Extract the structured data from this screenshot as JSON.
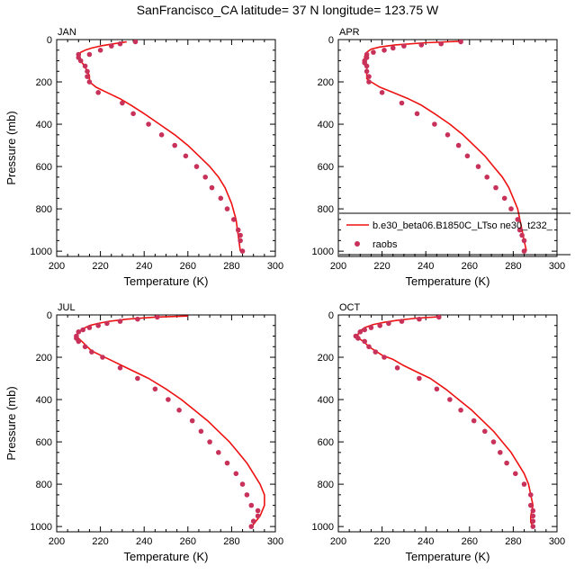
{
  "figure": {
    "title": "SanFrancisco_CA  latitude= 37 N longitude= 123.75 W"
  },
  "legend": {
    "model_label": "b.e30_beta06.B1850C_LTso ne30_t232_",
    "obs_label": "raobs",
    "model_color": "#ee1111",
    "obs_color": "#c8325a",
    "placement": "over APR panel, lower right"
  },
  "chart_data": [
    {
      "type": "line",
      "panel": "JAN",
      "title": "JAN",
      "xlabel": "Temperature (K)",
      "ylabel": "Pressure (mb)",
      "xlim": [
        200,
        300
      ],
      "ylim": [
        1025,
        0
      ],
      "x_ticks": [
        200,
        220,
        240,
        260,
        280,
        300
      ],
      "y_ticks": [
        0,
        200,
        400,
        600,
        800,
        1000
      ],
      "grid": false,
      "series": [
        {
          "name": "b.e30_beta06.B1850C_LTso ne30_t232_",
          "kind": "line",
          "points": [
            [
              232,
              10
            ],
            [
              226,
              20
            ],
            [
              220,
              30
            ],
            [
              216,
              40
            ],
            [
              213,
              50
            ],
            [
              211,
              60
            ],
            [
              210,
              75
            ],
            [
              210,
              90
            ],
            [
              211,
              100
            ],
            [
              212,
              115
            ],
            [
              213,
              130
            ],
            [
              214,
              150
            ],
            [
              215,
              170
            ],
            [
              215,
              200
            ],
            [
              218,
              225
            ],
            [
              223,
              250
            ],
            [
              229,
              280
            ],
            [
              234,
              310
            ],
            [
              240,
              350
            ],
            [
              247,
              400
            ],
            [
              254,
              450
            ],
            [
              260,
              500
            ],
            [
              265,
              550
            ],
            [
              270,
              600
            ],
            [
              274,
              650
            ],
            [
              277,
              700
            ],
            [
              280,
              775
            ],
            [
              282,
              850
            ],
            [
              283,
              925
            ],
            [
              284,
              1000
            ]
          ]
        },
        {
          "name": "raobs",
          "kind": "scatter",
          "points": [
            [
              236,
              10
            ],
            [
              229,
              20
            ],
            [
              225,
              30
            ],
            [
              220,
              50
            ],
            [
              215,
              70
            ],
            [
              210,
              70
            ],
            [
              210,
              85
            ],
            [
              211,
              100
            ],
            [
              213,
              125
            ],
            [
              214,
              150
            ],
            [
              214,
              175
            ],
            [
              215,
              200
            ],
            [
              219,
              250
            ],
            [
              230,
              300
            ],
            [
              235,
              350
            ],
            [
              242,
              400
            ],
            [
              248,
              450
            ],
            [
              254,
              500
            ],
            [
              259,
              550
            ],
            [
              264,
              600
            ],
            [
              268,
              650
            ],
            [
              271,
              700
            ],
            [
              275,
              750
            ],
            [
              278,
              800
            ],
            [
              281,
              850
            ],
            [
              283,
              900
            ],
            [
              284,
              925
            ],
            [
              284,
              950
            ],
            [
              285,
              1000
            ]
          ]
        }
      ]
    },
    {
      "type": "line",
      "panel": "APR",
      "title": "APR",
      "xlabel": "Temperature (K)",
      "ylabel": "",
      "xlim": [
        200,
        300
      ],
      "ylim": [
        1025,
        0
      ],
      "x_ticks": [
        200,
        220,
        240,
        260,
        280,
        300
      ],
      "y_ticks": [
        0,
        200,
        400,
        600,
        800,
        1000
      ],
      "grid": false,
      "series": [
        {
          "name": "b.e30_beta06.B1850C_LTso ne30_t232_",
          "kind": "line",
          "points": [
            [
              255,
              8
            ],
            [
              240,
              15
            ],
            [
              226,
              25
            ],
            [
              219,
              35
            ],
            [
              215,
              45
            ],
            [
              213,
              60
            ],
            [
              212,
              80
            ],
            [
              212,
              100
            ],
            [
              213,
              130
            ],
            [
              213,
              160
            ],
            [
              213,
              185
            ],
            [
              215,
              200
            ],
            [
              219,
              225
            ],
            [
              225,
              250
            ],
            [
              232,
              280
            ],
            [
              238,
              310
            ],
            [
              244,
              350
            ],
            [
              251,
              400
            ],
            [
              257,
              450
            ],
            [
              262,
              500
            ],
            [
              267,
              550
            ],
            [
              271,
              600
            ],
            [
              275,
              650
            ],
            [
              278,
              700
            ],
            [
              280,
              750
            ],
            [
              282,
              800
            ],
            [
              283,
              850
            ],
            [
              284,
              900
            ],
            [
              285,
              950
            ],
            [
              286,
              1000
            ]
          ]
        },
        {
          "name": "raobs",
          "kind": "scatter",
          "points": [
            [
              256,
              10
            ],
            [
              247,
              20
            ],
            [
              238,
              25
            ],
            [
              230,
              30
            ],
            [
              225,
              40
            ],
            [
              221,
              50
            ],
            [
              216,
              60
            ],
            [
              213,
              70
            ],
            [
              213,
              85
            ],
            [
              212,
              100
            ],
            [
              212,
              110
            ],
            [
              213,
              125
            ],
            [
              213,
              150
            ],
            [
              214,
              175
            ],
            [
              214,
              200
            ],
            [
              220,
              250
            ],
            [
              229,
              300
            ],
            [
              236,
              350
            ],
            [
              244,
              400
            ],
            [
              250,
              450
            ],
            [
              255,
              500
            ],
            [
              259,
              550
            ],
            [
              264,
              600
            ],
            [
              268,
              650
            ],
            [
              272,
              700
            ],
            [
              276,
              750
            ],
            [
              279,
              800
            ],
            [
              282,
              850
            ],
            [
              283,
              900
            ],
            [
              284,
              925
            ],
            [
              285,
              950
            ],
            [
              285,
              1000
            ]
          ]
        }
      ]
    },
    {
      "type": "line",
      "panel": "JUL",
      "title": "JUL",
      "xlabel": "Temperature (K)",
      "ylabel": "Pressure (mb)",
      "xlim": [
        200,
        300
      ],
      "ylim": [
        1025,
        0
      ],
      "x_ticks": [
        200,
        220,
        240,
        260,
        280,
        300
      ],
      "y_ticks": [
        0,
        200,
        400,
        600,
        800,
        1000
      ],
      "grid": false,
      "series": [
        {
          "name": "b.e30_beta06.B1850C_LTso ne30_t232_",
          "kind": "line",
          "points": [
            [
              260,
              5
            ],
            [
              245,
              10
            ],
            [
              232,
              20
            ],
            [
              224,
              30
            ],
            [
              219,
              40
            ],
            [
              215,
              50
            ],
            [
              212,
              65
            ],
            [
              210,
              80
            ],
            [
              209,
              95
            ],
            [
              210,
              110
            ],
            [
              212,
              130
            ],
            [
              214,
              150
            ],
            [
              216,
              170
            ],
            [
              220,
              190
            ],
            [
              226,
              220
            ],
            [
              234,
              260
            ],
            [
              242,
              300
            ],
            [
              250,
              350
            ],
            [
              257,
              400
            ],
            [
              263,
              450
            ],
            [
              269,
              500
            ],
            [
              274,
              550
            ],
            [
              279,
              600
            ],
            [
              283,
              650
            ],
            [
              287,
              700
            ],
            [
              290,
              750
            ],
            [
              293,
              800
            ],
            [
              295,
              850
            ],
            [
              295,
              900
            ],
            [
              293,
              950
            ],
            [
              290,
              990
            ],
            [
              289,
              1000
            ]
          ]
        },
        {
          "name": "raobs",
          "kind": "scatter",
          "points": [
            [
              246,
              10
            ],
            [
              237,
              20
            ],
            [
              229,
              30
            ],
            [
              223,
              40
            ],
            [
              219,
              50
            ],
            [
              215,
              60
            ],
            [
              212,
              70
            ],
            [
              210,
              80
            ],
            [
              209,
              100
            ],
            [
              209,
              110
            ],
            [
              210,
              125
            ],
            [
              213,
              150
            ],
            [
              216,
              175
            ],
            [
              221,
              200
            ],
            [
              229,
              250
            ],
            [
              237,
              300
            ],
            [
              245,
              350
            ],
            [
              251,
              400
            ],
            [
              256,
              450
            ],
            [
              262,
              500
            ],
            [
              266,
              550
            ],
            [
              270,
              600
            ],
            [
              274,
              650
            ],
            [
              278,
              700
            ],
            [
              282,
              750
            ],
            [
              285,
              800
            ],
            [
              287,
              850
            ],
            [
              289,
              900
            ],
            [
              292,
              925
            ],
            [
              292,
              950
            ],
            [
              290,
              975
            ],
            [
              289,
              1000
            ]
          ]
        }
      ]
    },
    {
      "type": "line",
      "panel": "OCT",
      "title": "OCT",
      "xlabel": "Temperature (K)",
      "ylabel": "",
      "xlim": [
        200,
        300
      ],
      "ylim": [
        1025,
        0
      ],
      "x_ticks": [
        200,
        220,
        240,
        260,
        280,
        300
      ],
      "y_ticks": [
        0,
        200,
        400,
        600,
        800,
        1000
      ],
      "grid": false,
      "series": [
        {
          "name": "b.e30_beta06.B1850C_LTso ne30_t232_",
          "kind": "line",
          "points": [
            [
              247,
              8
            ],
            [
              236,
              15
            ],
            [
              227,
              25
            ],
            [
              221,
              35
            ],
            [
              216,
              45
            ],
            [
              212,
              60
            ],
            [
              210,
              75
            ],
            [
              209,
              90
            ],
            [
              209,
              100
            ],
            [
              210,
              115
            ],
            [
              212,
              130
            ],
            [
              214,
              150
            ],
            [
              217,
              170
            ],
            [
              220,
              190
            ],
            [
              225,
              210
            ],
            [
              230,
              240
            ],
            [
              236,
              270
            ],
            [
              242,
              300
            ],
            [
              249,
              350
            ],
            [
              255,
              400
            ],
            [
              261,
              450
            ],
            [
              266,
              500
            ],
            [
              271,
              550
            ],
            [
              275,
              600
            ],
            [
              279,
              650
            ],
            [
              282,
              700
            ],
            [
              285,
              750
            ],
            [
              287,
              800
            ],
            [
              288,
              850
            ],
            [
              289,
              900
            ],
            [
              288,
              950
            ],
            [
              288,
              980
            ],
            [
              289,
              1000
            ]
          ]
        },
        {
          "name": "raobs",
          "kind": "scatter",
          "points": [
            [
              246,
              10
            ],
            [
              237,
              20
            ],
            [
              229,
              30
            ],
            [
              223,
              40
            ],
            [
              219,
              50
            ],
            [
              215,
              60
            ],
            [
              212,
              70
            ],
            [
              210,
              80
            ],
            [
              208,
              100
            ],
            [
              209,
              110
            ],
            [
              212,
              125
            ],
            [
              214,
              150
            ],
            [
              217,
              175
            ],
            [
              221,
              200
            ],
            [
              227,
              250
            ],
            [
              237,
              300
            ],
            [
              245,
              350
            ],
            [
              251,
              400
            ],
            [
              256,
              450
            ],
            [
              262,
              500
            ],
            [
              267,
              550
            ],
            [
              271,
              600
            ],
            [
              274,
              650
            ],
            [
              277,
              700
            ],
            [
              281,
              750
            ],
            [
              285,
              800
            ],
            [
              288,
              850
            ],
            [
              288,
              900
            ],
            [
              289,
              925
            ],
            [
              289,
              950
            ],
            [
              289,
              975
            ],
            [
              289,
              1000
            ]
          ]
        }
      ]
    }
  ]
}
